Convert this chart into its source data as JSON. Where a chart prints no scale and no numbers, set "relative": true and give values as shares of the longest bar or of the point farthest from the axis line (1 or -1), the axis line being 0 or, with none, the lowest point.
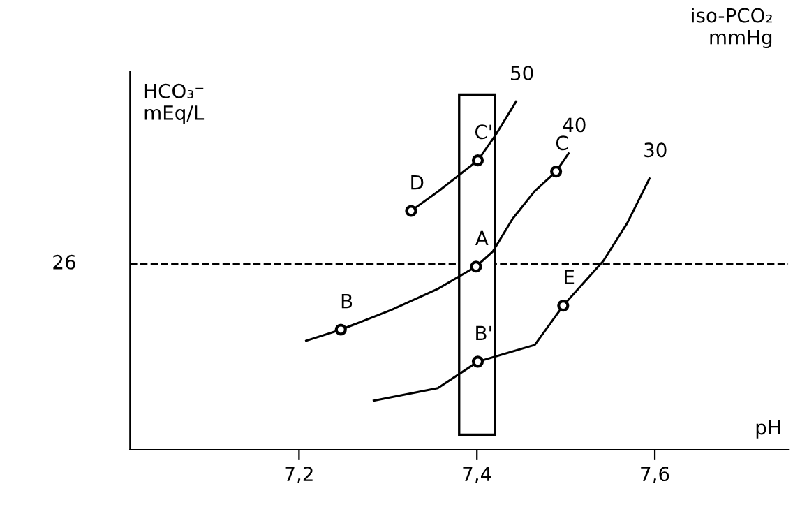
{
  "chart_data": {
    "type": "line",
    "relative": true,
    "xlabel": "pH",
    "ylabel": "HCO₃⁻\nmEq/L",
    "xlim": [
      7.01,
      7.75
    ],
    "xticks": [
      {
        "value": 7.2,
        "label": "7,2"
      },
      {
        "value": 7.4,
        "label": "7,4"
      },
      {
        "value": 7.6,
        "label": "7,6"
      }
    ],
    "grid": false,
    "legend": false,
    "line_style": "solid",
    "marker": "none",
    "series": [
      {
        "color": "#000000",
        "x": [
          7.326,
          7.357,
          7.401,
          7.421,
          7.444
        ],
        "values": [
          0.686,
          0.743,
          0.831,
          0.904,
          1.0
        ]
      },
      {
        "color": "#000000",
        "x": [
          7.208,
          7.247,
          7.304,
          7.356,
          7.399,
          7.418,
          7.44,
          7.465,
          7.489,
          7.503
        ],
        "values": [
          0.313,
          0.345,
          0.402,
          0.462,
          0.526,
          0.57,
          0.663,
          0.743,
          0.799,
          0.851
        ]
      },
      {
        "color": "#000000",
        "x": [
          7.284,
          7.356,
          7.401,
          7.465,
          7.497,
          7.542,
          7.569,
          7.594
        ],
        "values": [
          0.141,
          0.177,
          0.253,
          0.301,
          0.414,
          0.542,
          0.651,
          0.779
        ]
      },
      {
        "type": "scatter",
        "color": "#000000",
        "marker": "circle",
        "x": [
          7.247,
          7.399,
          7.489
        ],
        "values": [
          0.345,
          0.526,
          0.799
        ]
      },
      {
        "type": "scatter",
        "color": "#000000",
        "marker": "circle",
        "x": [
          7.326,
          7.401,
          7.401,
          7.497
        ],
        "values": [
          0.686,
          0.831,
          0.253,
          0.414
        ]
      }
    ],
    "ref_lines": [
      {
        "axis": "y",
        "value": 0.534,
        "line_style": "dashed",
        "color": "#000000"
      }
    ],
    "bands": [
      {
        "axis": "x",
        "from": 7.38,
        "to": 7.42,
        "color": "#ffffff"
      }
    ],
    "annotations": [
      {
        "text": "50",
        "x": 7.444,
        "y": 1.0
      },
      {
        "text": "40",
        "x": 7.503,
        "y": 0.851
      },
      {
        "text": "30",
        "x": 7.594,
        "y": 0.779
      },
      {
        "text": "B",
        "x": 7.247,
        "y": 0.345
      },
      {
        "text": "A",
        "x": 7.399,
        "y": 0.526
      },
      {
        "text": "C",
        "x": 7.489,
        "y": 0.799
      },
      {
        "text": "D",
        "x": 7.326,
        "y": 0.686
      },
      {
        "text": "C'",
        "x": 7.401,
        "y": 0.831
      },
      {
        "text": "B'",
        "x": 7.401,
        "y": 0.253
      },
      {
        "text": "E",
        "x": 7.497,
        "y": 0.414
      },
      "iso-PCO₂\nmmHg",
      "26"
    ]
  }
}
